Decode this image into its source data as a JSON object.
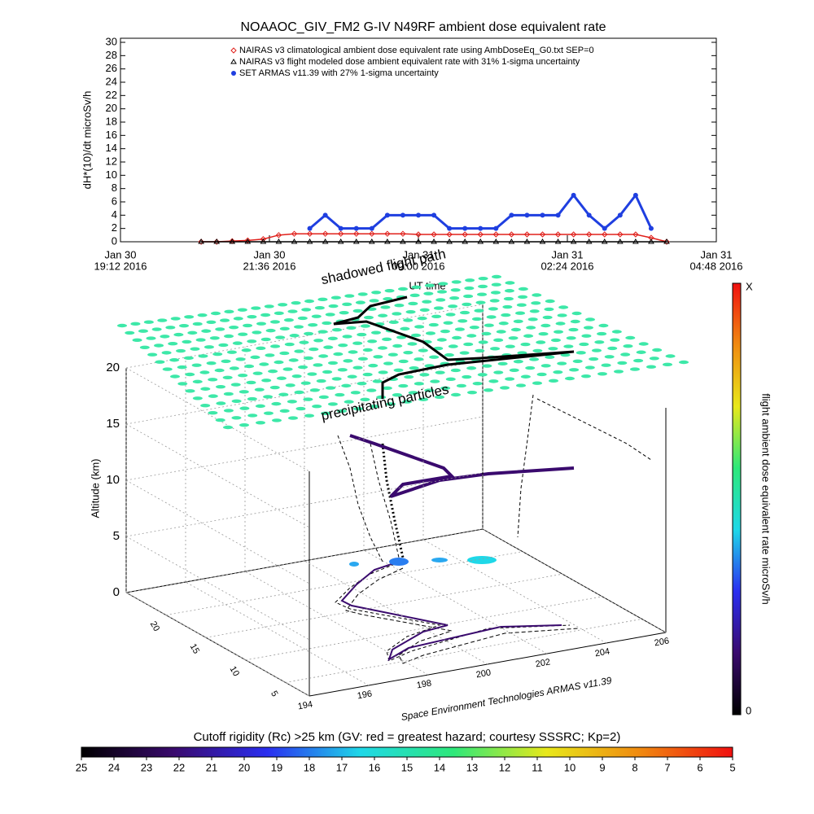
{
  "chart_data": [
    {
      "type": "line",
      "title": "NOAAOC_GIV_FM2 G-IV   N49RF  ambient dose equivalent rate",
      "ylabel": "dH*(10)/dt microSv/h",
      "xlabel": "UT time",
      "x": [
        "2016-01-30T20:30",
        "2016-01-30T20:45",
        "2016-01-30T21:00",
        "2016-01-30T21:15",
        "2016-01-30T21:30",
        "2016-01-30T21:45",
        "2016-01-30T22:00",
        "2016-01-30T22:15",
        "2016-01-30T22:30",
        "2016-01-30T22:45",
        "2016-01-30T23:00",
        "2016-01-30T23:15",
        "2016-01-30T23:30",
        "2016-01-30T23:45",
        "2016-01-31T00:00",
        "2016-01-31T00:15",
        "2016-01-31T00:30",
        "2016-01-31T00:45",
        "2016-01-31T01:00",
        "2016-01-31T01:15",
        "2016-01-31T01:30",
        "2016-01-31T01:45",
        "2016-01-31T02:00",
        "2016-01-31T02:15",
        "2016-01-31T02:30",
        "2016-01-31T02:45",
        "2016-01-31T03:00",
        "2016-01-31T03:15",
        "2016-01-31T03:30",
        "2016-01-31T03:45",
        "2016-01-31T04:00"
      ],
      "xlim": [
        "2016-01-30T19:12",
        "2016-01-31T04:48"
      ],
      "xticks": [
        {
          "value": "2016-01-30T19:12",
          "label": [
            "Jan 30",
            "19:12 2016"
          ]
        },
        {
          "value": "2016-01-30T21:36",
          "label": [
            "Jan 30",
            "21:36 2016"
          ]
        },
        {
          "value": "2016-01-31T00:00",
          "label": [
            "Jan 31",
            "00:00 2016"
          ]
        },
        {
          "value": "2016-01-31T02:24",
          "label": [
            "Jan 31",
            "02:24 2016"
          ]
        },
        {
          "value": "2016-01-31T04:48",
          "label": [
            "Jan 31",
            "04:48 2016"
          ]
        }
      ],
      "ylim": [
        0,
        30
      ],
      "yticks": [
        0,
        2,
        4,
        6,
        8,
        10,
        12,
        14,
        16,
        18,
        20,
        22,
        24,
        26,
        28,
        30
      ],
      "legend": "upper center",
      "series": [
        {
          "name": "NAIRAS v3 climatological ambient dose equivalent rate using AmbDoseEq_G0.txt SEP=0",
          "color": "#e0201b",
          "marker": "diamond",
          "values": [
            0,
            0,
            0.1,
            0.2,
            0.4,
            1.0,
            1.2,
            1.2,
            1.2,
            1.2,
            1.2,
            1.2,
            1.2,
            1.2,
            1.1,
            1.1,
            1.1,
            1.1,
            1.1,
            1.1,
            1.1,
            1.1,
            1.1,
            1.1,
            1.1,
            1.1,
            1.1,
            1.1,
            1.1,
            0.6,
            0
          ]
        },
        {
          "name": "NAIRAS v3 flight modeled dose ambient equivalent rate with 31% 1-sigma uncertainty",
          "color": "#000000",
          "marker": "triangle",
          "values": [
            0,
            0,
            0,
            0,
            0,
            0,
            0,
            0,
            0,
            0,
            0,
            0,
            0,
            0,
            0,
            0,
            0,
            0,
            0,
            0,
            0,
            0,
            0,
            0,
            0,
            0,
            0,
            0,
            0,
            0,
            0
          ]
        },
        {
          "name": "SET ARMAS v11.39 with 27% 1-sigma uncertainty",
          "color": "#1f3fe0",
          "marker": "circle",
          "values": [
            null,
            null,
            null,
            null,
            null,
            null,
            null,
            2,
            4,
            2,
            2,
            2,
            4,
            4,
            4,
            4,
            2,
            2,
            2,
            2,
            4,
            4,
            4,
            4,
            7,
            4,
            2,
            4,
            7,
            2,
            null
          ]
        }
      ]
    },
    {
      "type": "surface3d",
      "annotations": [
        "shadowed flight path",
        "precipitating particles"
      ],
      "zlabel": "Altitude (km)",
      "zlim": [
        0,
        20
      ],
      "zticks": [
        0,
        5,
        10,
        15,
        20
      ],
      "xlim": [
        194,
        206
      ],
      "xticks": [
        194,
        196,
        198,
        200,
        202,
        204,
        206
      ],
      "ylim": [
        2,
        25
      ],
      "yticks": [
        5,
        10,
        15,
        20
      ],
      "credit": "Space Environment Technologies ARMAS v11.39"
    },
    {
      "type": "colorbar",
      "orientation": "vertical",
      "label": "flight ambient dose equivalent rate microSv/h",
      "tick_labels": [
        "X",
        "0"
      ],
      "colors": [
        "#000000",
        "#3a0a6e",
        "#2a2ef0",
        "#1fd8e8",
        "#2de87a",
        "#e8e81a",
        "#f08a10",
        "#f01010"
      ]
    },
    {
      "type": "colorbar",
      "orientation": "horizontal",
      "label": "Cutoff rigidity (Rc) >25 km (GV: red = greatest hazard; courtesy SSSRC; Kp=2)",
      "lim": [
        25,
        5
      ],
      "ticks": [
        25,
        24,
        23,
        22,
        21,
        20,
        19,
        18,
        17,
        16,
        15,
        14,
        13,
        12,
        11,
        10,
        9,
        8,
        7,
        6,
        5
      ],
      "colors": [
        "#000000",
        "#3a0a6e",
        "#2a2ef0",
        "#1fd8e8",
        "#2de87a",
        "#e8e81a",
        "#f08a10",
        "#f01010"
      ]
    }
  ]
}
